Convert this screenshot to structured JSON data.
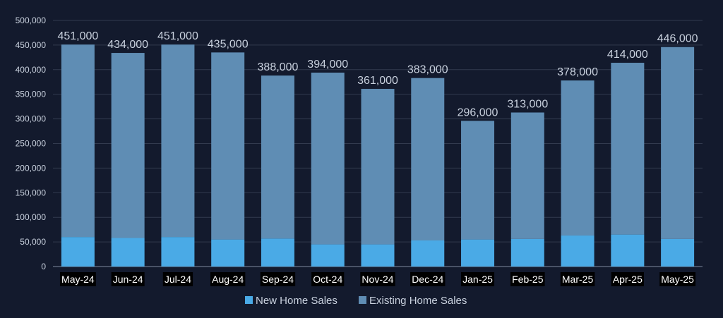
{
  "chart_data": {
    "type": "bar",
    "stacked": true,
    "categories": [
      "May-24",
      "Jun-24",
      "Jul-24",
      "Aug-24",
      "Sep-24",
      "Oct-24",
      "Nov-24",
      "Dec-24",
      "Jan-25",
      "Feb-25",
      "Mar-25",
      "Apr-25",
      "May-25"
    ],
    "series": [
      {
        "name": "New Home Sales",
        "color": "#4aaae6",
        "values": [
          60000,
          58000,
          60000,
          55000,
          57000,
          45000,
          45000,
          53000,
          55000,
          56000,
          63000,
          65000,
          56000
        ]
      },
      {
        "name": "Existing Home Sales",
        "color": "#5f8db4",
        "values": [
          391000,
          376000,
          391000,
          380000,
          331000,
          349000,
          316000,
          330000,
          241000,
          257000,
          315000,
          349000,
          390000
        ]
      }
    ],
    "totals": [
      451000,
      434000,
      451000,
      435000,
      388000,
      394000,
      361000,
      383000,
      296000,
      313000,
      378000,
      414000,
      446000
    ],
    "total_labels": [
      "451,000",
      "434,000",
      "451,000",
      "435,000",
      "388,000",
      "394,000",
      "361,000",
      "383,000",
      "296,000",
      "313,000",
      "378,000",
      "414,000",
      "446,000"
    ],
    "yticks": [
      0,
      50000,
      100000,
      150000,
      200000,
      250000,
      300000,
      350000,
      400000,
      450000,
      500000
    ],
    "ytick_labels": [
      "0",
      "50,000",
      "100,000",
      "150,000",
      "200,000",
      "250,000",
      "300,000",
      "350,000",
      "400,000",
      "450,000",
      "500,000"
    ],
    "ylim": [
      0,
      500000
    ],
    "grid": true,
    "legend_position": "bottom-center",
    "title": "",
    "xlabel": "",
    "ylabel": ""
  },
  "colors": {
    "background": "#131a2d",
    "grid": "#323a4e",
    "axis_text": "#c9d1de",
    "value_label": "#c9d1de",
    "category_label": "#ffffff",
    "category_label_bg": "#000000"
  }
}
